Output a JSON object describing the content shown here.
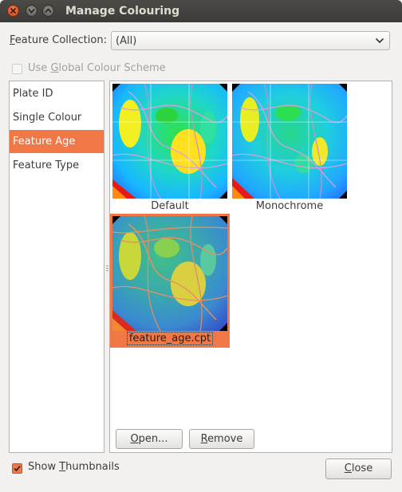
{
  "window": {
    "title": "Manage Colouring"
  },
  "feature_collection": {
    "label": "Feature Collection:",
    "mnemonic": "F",
    "label_rest": "eature Collection:",
    "value": "(All)"
  },
  "global_scheme": {
    "label": "Use Global Colour Scheme",
    "pre": "Use ",
    "mnemonic": "G",
    "rest": "lobal Colour Scheme",
    "checked": false,
    "enabled": false
  },
  "sidebar": {
    "items": [
      {
        "label": "Plate ID",
        "selected": false
      },
      {
        "label": "Single Colour",
        "selected": false
      },
      {
        "label": "Feature Age",
        "selected": true
      },
      {
        "label": "Feature Type",
        "selected": false
      }
    ]
  },
  "palettes": [
    {
      "caption": "Default",
      "selected": false,
      "style": "default"
    },
    {
      "caption": "Monochrome",
      "selected": false,
      "style": "mono"
    },
    {
      "caption": "feature_age.cpt",
      "selected": true,
      "style": "cpt"
    }
  ],
  "buttons": {
    "open": {
      "mnemonic": "O",
      "rest": "pen..."
    },
    "remove": {
      "mnemonic": "R",
      "rest": "emove"
    },
    "close": {
      "mnemonic": "C",
      "rest": "lose"
    }
  },
  "show_thumbnails": {
    "pre": "Show ",
    "mnemonic": "T",
    "rest": "humbnails",
    "checked": true
  },
  "colors": {
    "accent": "#f07746",
    "titlebar": "#3c3b37"
  }
}
